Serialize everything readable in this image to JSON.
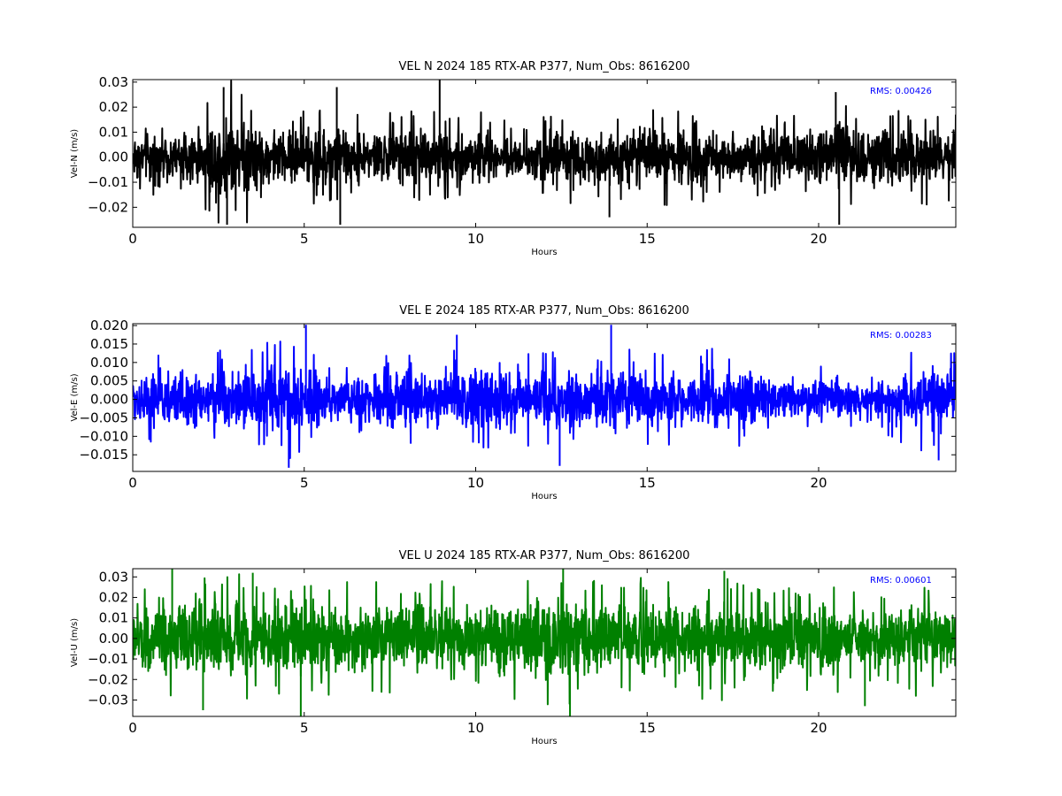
{
  "chart_data": [
    {
      "type": "line",
      "title": "VEL N 2024 185 RTX-AR  P377, Num_Obs: 8616200",
      "xlabel": "Hours",
      "ylabel": "Vel-N (m/s)",
      "xlim": [
        0,
        24
      ],
      "ylim": [
        -0.028,
        0.031
      ],
      "xticks": [
        0,
        5,
        10,
        15,
        20
      ],
      "xtick_labels": [
        "0",
        "5",
        "10",
        "15",
        "20"
      ],
      "yticks": [
        0.03,
        0.02,
        0.01,
        0.0,
        -0.01,
        -0.02
      ],
      "ytick_labels": [
        "0.03",
        "0.02",
        "0.01",
        "0.00",
        "−0.01",
        "−0.02"
      ],
      "color": "#000000",
      "rms_label": "RMS:  0.00426",
      "rms_color": "#0000ff",
      "grid": false,
      "envelope": {
        "x": [
          0,
          1,
          2,
          2.4,
          2.8,
          3.2,
          4,
          5,
          6,
          7,
          8,
          9,
          10,
          11,
          11.5,
          12,
          13,
          14,
          15,
          16,
          17,
          18,
          19,
          20,
          20.3,
          20.6,
          21,
          21.5,
          22,
          23,
          24
        ],
        "upper": [
          0.011,
          0.01,
          0.011,
          0.018,
          0.022,
          0.018,
          0.011,
          0.012,
          0.013,
          0.011,
          0.012,
          0.013,
          0.012,
          0.009,
          0.008,
          0.011,
          0.012,
          0.011,
          0.012,
          0.013,
          0.01,
          0.01,
          0.011,
          0.011,
          0.017,
          0.018,
          0.012,
          0.012,
          0.013,
          0.012,
          0.012
        ],
        "lower": [
          -0.011,
          -0.01,
          -0.011,
          -0.018,
          -0.022,
          -0.018,
          -0.011,
          -0.012,
          -0.013,
          -0.011,
          -0.012,
          -0.013,
          -0.012,
          -0.009,
          -0.008,
          -0.011,
          -0.012,
          -0.011,
          -0.012,
          -0.013,
          -0.01,
          -0.01,
          -0.011,
          -0.011,
          -0.017,
          -0.018,
          -0.012,
          -0.012,
          -0.013,
          -0.012,
          -0.012
        ]
      },
      "spikes": [
        {
          "x": 2.65,
          "y": 0.028
        },
        {
          "x": 2.75,
          "y": -0.027
        },
        {
          "x": 5.95,
          "y": 0.028
        },
        {
          "x": 6.05,
          "y": -0.027
        },
        {
          "x": 8.95,
          "y": 0.031
        },
        {
          "x": 13.9,
          "y": -0.024
        },
        {
          "x": 20.5,
          "y": 0.026
        },
        {
          "x": 20.6,
          "y": -0.027
        }
      ]
    },
    {
      "type": "line",
      "title": "VEL E 2024 185 RTX-AR  P377, Num_Obs: 8616200",
      "xlabel": "Hours",
      "ylabel": "Vel-E (m/s)",
      "xlim": [
        0,
        24
      ],
      "ylim": [
        -0.0195,
        0.0205
      ],
      "xticks": [
        0,
        5,
        10,
        15,
        20
      ],
      "xtick_labels": [
        "0",
        "5",
        "10",
        "15",
        "20"
      ],
      "yticks": [
        0.02,
        0.015,
        0.01,
        0.005,
        0.0,
        -0.005,
        -0.01,
        -0.015
      ],
      "ytick_labels": [
        "0.020",
        "0.015",
        "0.010",
        "0.005",
        "0.000",
        "−0.005",
        "−0.010",
        "−0.015"
      ],
      "color": "#0000ff",
      "rms_label": "RMS:  0.00283",
      "rms_color": "#0000ff",
      "grid": false,
      "envelope": {
        "x": [
          0,
          1,
          2,
          3,
          4,
          4.5,
          5,
          6,
          7,
          8,
          9,
          10,
          11,
          12,
          13,
          14,
          15,
          16,
          17,
          18,
          19,
          20,
          21,
          22,
          22.5,
          23,
          24
        ],
        "upper": [
          0.007,
          0.008,
          0.008,
          0.009,
          0.01,
          0.011,
          0.011,
          0.006,
          0.007,
          0.008,
          0.008,
          0.009,
          0.008,
          0.008,
          0.008,
          0.009,
          0.008,
          0.008,
          0.009,
          0.008,
          0.005,
          0.006,
          0.005,
          0.006,
          0.009,
          0.009,
          0.008
        ],
        "lower": [
          -0.007,
          -0.008,
          -0.008,
          -0.009,
          -0.01,
          -0.011,
          -0.011,
          -0.006,
          -0.007,
          -0.008,
          -0.008,
          -0.009,
          -0.008,
          -0.008,
          -0.008,
          -0.009,
          -0.008,
          -0.008,
          -0.009,
          -0.008,
          -0.005,
          -0.006,
          -0.005,
          -0.006,
          -0.009,
          -0.009,
          -0.008
        ]
      },
      "spikes": [
        {
          "x": 4.55,
          "y": -0.0185
        },
        {
          "x": 5.05,
          "y": 0.0202
        },
        {
          "x": 12.45,
          "y": -0.018
        },
        {
          "x": 13.95,
          "y": 0.0202
        },
        {
          "x": 9.45,
          "y": 0.0175
        },
        {
          "x": 23.5,
          "y": -0.0165
        }
      ]
    },
    {
      "type": "line",
      "title": "VEL U 2024 185 RTX-AR  P377, Num_Obs: 8616200",
      "xlabel": "Hours",
      "ylabel": "Vel-U (m/s)",
      "xlim": [
        0,
        24
      ],
      "ylim": [
        -0.038,
        0.034
      ],
      "xticks": [
        0,
        5,
        10,
        15,
        20
      ],
      "xtick_labels": [
        "0",
        "5",
        "10",
        "15",
        "20"
      ],
      "yticks": [
        0.03,
        0.02,
        0.01,
        0.0,
        -0.01,
        -0.02,
        -0.03
      ],
      "ytick_labels": [
        "0.03",
        "0.02",
        "0.01",
        "0.00",
        "−0.01",
        "−0.02",
        "−0.03"
      ],
      "color": "#008000",
      "rms_label": "RMS:  0.00601",
      "rms_color": "#0000ff",
      "grid": false,
      "envelope": {
        "x": [
          0,
          1,
          2,
          3,
          4,
          5,
          6,
          7,
          8,
          9,
          10,
          11,
          12,
          13,
          14,
          15,
          16,
          17,
          18,
          19,
          20,
          21,
          22,
          23,
          24
        ],
        "upper": [
          0.02,
          0.019,
          0.019,
          0.02,
          0.017,
          0.02,
          0.017,
          0.018,
          0.019,
          0.018,
          0.016,
          0.02,
          0.022,
          0.02,
          0.017,
          0.019,
          0.018,
          0.019,
          0.018,
          0.017,
          0.019,
          0.018,
          0.016,
          0.018,
          0.019
        ],
        "lower": [
          -0.02,
          -0.019,
          -0.019,
          -0.02,
          -0.017,
          -0.02,
          -0.017,
          -0.018,
          -0.019,
          -0.018,
          -0.016,
          -0.02,
          -0.022,
          -0.02,
          -0.017,
          -0.019,
          -0.018,
          -0.019,
          -0.018,
          -0.017,
          -0.019,
          -0.018,
          -0.016,
          -0.018,
          -0.019
        ]
      },
      "spikes": [
        {
          "x": 1.15,
          "y": 0.034
        },
        {
          "x": 2.05,
          "y": -0.035
        },
        {
          "x": 3.5,
          "y": 0.032
        },
        {
          "x": 4.9,
          "y": -0.038
        },
        {
          "x": 12.75,
          "y": -0.038
        },
        {
          "x": 12.55,
          "y": 0.034
        },
        {
          "x": 21.35,
          "y": -0.033
        },
        {
          "x": 17.25,
          "y": 0.033
        }
      ]
    }
  ]
}
